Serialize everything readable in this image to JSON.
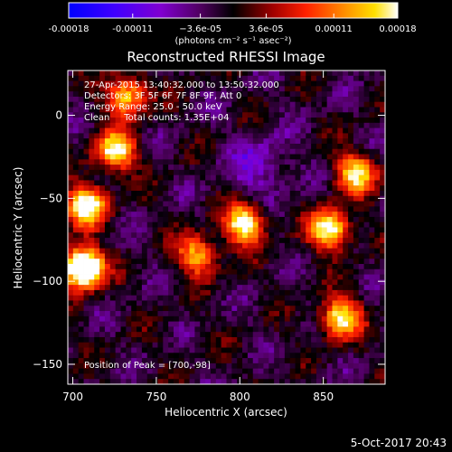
{
  "chart_data": {
    "type": "heatmap",
    "title": "Reconstructed RHESSI Image",
    "xlabel": "Heliocentric X (arcsec)",
    "ylabel": "Heliocentric Y (arcsec)",
    "xlim": [
      697,
      887
    ],
    "ylim": [
      -162,
      27
    ],
    "x_ticks": [
      700,
      750,
      800,
      850
    ],
    "y_ticks": [
      0,
      -50,
      -100,
      -150
    ],
    "colorbar": {
      "ticks": [
        "-0.00018",
        "-0.00011",
        "−3.6e-05",
        "3.6e-05",
        "0.00011",
        "0.00018"
      ],
      "tick_values": [
        -0.00018,
        -0.00011,
        -3.6e-05,
        3.6e-05,
        0.00011,
        0.00018
      ],
      "range": [
        -0.00018,
        0.00018
      ],
      "units": "(photons cm⁻² s⁻¹ asec⁻²)"
    },
    "annotations": {
      "time": "27-Apr-2015 13:40:32.000 to 13:50:32.000",
      "detectors": "Detectors: 3F 5F 6F 7F 8F 9F, Att 0",
      "energy": "Energy Range: 25.0 - 50.0 keV",
      "clean": "Clean     Total counts: 1.35E+04",
      "peak": "Position of Peak = [700,-98]"
    },
    "timestamp": "5-Oct-2017 20:43",
    "peak": [
      700,
      -98
    ]
  },
  "colors": {
    "background": "#000000",
    "text": "#ffffff",
    "colormap": [
      "#0000ff",
      "#5a00ff",
      "#8a00c8",
      "#500060",
      "#000000",
      "#a00000",
      "#ff2a00",
      "#ff9000",
      "#ffe000",
      "#ffffff"
    ]
  }
}
